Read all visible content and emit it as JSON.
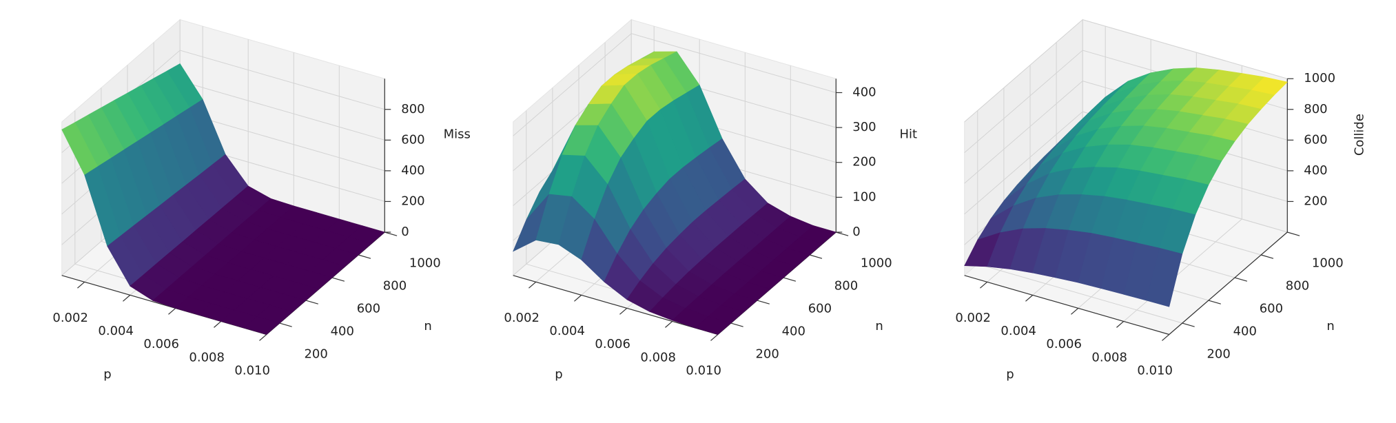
{
  "chart_data": [
    {
      "type": "surface",
      "xlabel": "p",
      "ylabel": "n",
      "zlabel": "Miss",
      "colormap": "viridis",
      "x": [
        0.001,
        0.002,
        0.003,
        0.004,
        0.005,
        0.006,
        0.007,
        0.008,
        0.009,
        0.01
      ],
      "y": [
        100,
        200,
        300,
        400,
        500,
        600,
        700,
        800,
        900,
        1000
      ],
      "z": [
        [
          950,
          923,
          897,
          871,
          845,
          818,
          792,
          766,
          739,
          713
        ],
        [
          697,
          678,
          658,
          639,
          620,
          600,
          581,
          562,
          542,
          523
        ],
        [
          276,
          268,
          261,
          253,
          245,
          238,
          230,
          222,
          215,
          207
        ],
        [
          59,
          57,
          56,
          54,
          52,
          51,
          49,
          48,
          46,
          44
        ],
        [
          7,
          7,
          7,
          6,
          6,
          6,
          6,
          6,
          5,
          5
        ],
        [
          0,
          0,
          0,
          0,
          0,
          0,
          0,
          0,
          0,
          0
        ],
        [
          0,
          0,
          0,
          0,
          0,
          0,
          0,
          0,
          0,
          0
        ],
        [
          0,
          0,
          0,
          0,
          0,
          0,
          0,
          0,
          0,
          0
        ],
        [
          0,
          0,
          0,
          0,
          0,
          0,
          0,
          0,
          0,
          0
        ],
        [
          0,
          0,
          0,
          0,
          0,
          0,
          0,
          0,
          0,
          0
        ]
      ],
      "xlim": [
        0.001,
        0.01
      ],
      "ylim": [
        100,
        1000
      ],
      "zlim": [
        0,
        1000
      ],
      "xticks": [
        0.002,
        0.004,
        0.006,
        0.008,
        {
          "value": 0.01,
          "label": "0.010"
        }
      ],
      "yticks": [
        200,
        400,
        600,
        800,
        1000
      ],
      "zticks": [
        0,
        200,
        400,
        600,
        800
      ]
    },
    {
      "type": "surface",
      "xlabel": "p",
      "ylabel": "n",
      "zlabel": "Hit",
      "colormap": "viridis",
      "x": [
        0.001,
        0.002,
        0.003,
        0.004,
        0.005,
        0.006,
        0.007,
        0.008,
        0.009,
        0.01
      ],
      "y": [
        100,
        200,
        300,
        400,
        500,
        600,
        700,
        800,
        900,
        1000
      ],
      "z": [
        [
          69,
          127,
          173,
          203,
          219,
          231,
          231,
          226,
          219,
          213
        ],
        [
          120,
          219,
          299,
          351,
          379,
          399,
          399,
          391,
          379,
          367
        ],
        [
          126,
          231,
          315,
          370,
          399,
          420,
          420,
          412,
          399,
          386
        ],
        [
          101,
          185,
          252,
          296,
          319,
          336,
          336,
          329,
          319,
          309
        ],
        [
          57,
          104,
          142,
          166,
          180,
          189,
          189,
          185,
          180,
          174
        ],
        [
          25,
          46,
          63,
          74,
          80,
          84,
          84,
          82,
          80,
          77
        ],
        [
          9,
          16,
          22,
          26,
          28,
          29,
          29,
          29,
          28,
          27
        ],
        [
          3,
          5,
          6,
          7,
          8,
          8,
          8,
          8,
          8,
          8
        ],
        [
          0,
          0,
          0,
          0,
          0,
          0,
          0,
          0,
          0,
          0
        ],
        [
          0,
          0,
          0,
          0,
          0,
          0,
          0,
          0,
          0,
          0
        ]
      ],
      "xlim": [
        0.001,
        0.01
      ],
      "ylim": [
        100,
        1000
      ],
      "zlim": [
        0,
        440
      ],
      "xticks": [
        0.002,
        0.004,
        0.006,
        0.008,
        {
          "value": 0.01,
          "label": "0.010"
        }
      ],
      "yticks": [
        200,
        400,
        600,
        800,
        1000
      ],
      "zticks": [
        0,
        100,
        200,
        300,
        400
      ]
    },
    {
      "type": "surface",
      "xlabel": "p",
      "ylabel": "n",
      "zlabel": "Collide",
      "colormap": "viridis",
      "x": [
        0.001,
        0.002,
        0.003,
        0.004,
        0.005,
        0.006,
        0.007,
        0.008,
        0.009,
        0.01
      ],
      "y": [
        100,
        200,
        300,
        400,
        500,
        600,
        700,
        800,
        900,
        1000
      ],
      "z": [
        [
          63,
          158,
          221,
          264,
          292,
          311,
          324,
          333,
          338,
          342
        ],
        [
          100,
          248,
          348,
          414,
          459,
          489,
          509,
          523,
          532,
          538
        ],
        [
          127,
          316,
          442,
          527,
          585,
          622,
          648,
          665,
          677,
          685
        ],
        [
          145,
          361,
          506,
          602,
          668,
          711,
          741,
          760,
          774,
          782
        ],
        [
          157,
          392,
          550,
          655,
          726,
          773,
          806,
          827,
          841,
          851
        ],
        [
          167,
          415,
          581,
          693,
          768,
          818,
          852,
          874,
          890,
          900
        ],
        [
          172,
          428,
          600,
          715,
          793,
          845,
          880,
          903,
          919,
          929
        ],
        [
          176,
          437,
          613,
          730,
          810,
          862,
          898,
          922,
          938,
          949
        ],
        [
          179,
          446,
          626,
          745,
          827,
          880,
          917,
          941,
          957,
          968
        ],
        [
          181,
          451,
          632,
          753,
          835,
          889,
          926,
          950,
          967,
          978
        ]
      ],
      "xlim": [
        0.001,
        0.01
      ],
      "ylim": [
        100,
        1000
      ],
      "zlim": [
        0,
        1000
      ],
      "xticks": [
        0.002,
        0.004,
        0.006,
        0.008,
        {
          "value": 0.01,
          "label": "0.010"
        }
      ],
      "yticks": [
        200,
        400,
        600,
        800,
        1000
      ],
      "zticks": [
        200,
        400,
        600,
        800,
        1000
      ]
    }
  ]
}
